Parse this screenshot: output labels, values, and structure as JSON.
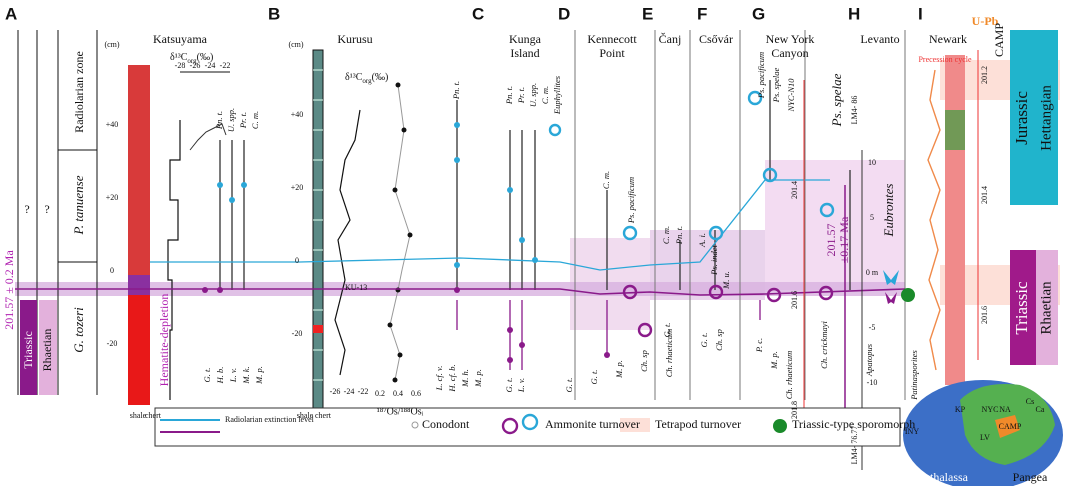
{
  "panels": {
    "A": {
      "letter": "A",
      "zone_header": "Radiolarian zone",
      "zone_upper": "P. tanuense",
      "zone_lower": "G. tozeri",
      "stage": "Rhaetian",
      "system": "Triassic",
      "unknown_1": "?",
      "unknown_2": "?",
      "age": "201.57 ± 0.2 Ma",
      "title": "Katsuyama",
      "depth_unit": "(cm)",
      "depth_ticks": [
        "+40",
        "+20",
        "0",
        "-20"
      ],
      "isotope_delta": "δ¹³C",
      "isotope_sub": "org",
      "isotope_unit": "(‰)",
      "isotope_ticks": [
        "-28",
        "-26",
        "-24",
        "-22"
      ],
      "top_taxa": [
        "Pn. t.",
        "U. spp.",
        "Pr. t.",
        "C. m."
      ],
      "bottom_taxa": [
        "G. t.",
        "H. b.",
        "L. v.",
        "M. k.",
        "M. p."
      ],
      "lithology": [
        "shale",
        "chert"
      ],
      "event": "Hematite-depletion"
    },
    "B": {
      "letter": "B",
      "title": "Kurusu",
      "depth_unit": "(cm)",
      "depth_ticks": [
        "+40",
        "+20",
        "0",
        "-20"
      ],
      "isotope_delta": "δ¹³C",
      "isotope_sub": "org",
      "isotope_unit": "(‰)",
      "isotope_ticks": [
        "-26",
        "-24",
        "-22"
      ],
      "os_ticks": [
        "0.2",
        "0.4",
        "0.6"
      ],
      "os_label": "¹⁸⁷Os/¹⁸⁸Osᵢ",
      "sample": "KU-13",
      "lithology": [
        "shale",
        "chert"
      ],
      "top_taxa": [
        "Pn. t."
      ],
      "bottom_taxa": [
        "L. cf. v.",
        "H. cf. b.",
        "M. h.",
        "M. p."
      ]
    },
    "C": {
      "letter": "C",
      "title_1": "Kunga",
      "title_2": "Island",
      "top_taxa": [
        "Pn. t.",
        "Pr. t.",
        "U. spp.",
        "C. m.",
        "Euphyllites"
      ],
      "bottom_taxa": [
        "G. t.",
        "L. v."
      ]
    },
    "D": {
      "letter": "D",
      "title_1": "Kennecott",
      "title_2": "Point",
      "top_taxa": [
        "C. m.",
        "Ps. pacificum"
      ],
      "bottom_taxa": [
        "G. t.",
        "G. t.",
        "M. p.",
        "Ch. sp",
        "Ch. rhaeticum"
      ]
    },
    "E": {
      "letter": "E",
      "title": "Čanj",
      "top_taxa": [
        "C. m.",
        "Pn. t."
      ],
      "bottom_taxa": [
        "G. t."
      ]
    },
    "F": {
      "letter": "F",
      "title": "Csővár",
      "top_taxa": [
        "A. i.",
        "Ps. indet",
        "M. u."
      ],
      "bottom_taxa": [
        "G. t.",
        "Ch. sp"
      ]
    },
    "G": {
      "letter": "G",
      "title_1": "New York",
      "title_2": "Canyon",
      "top_taxa": [
        "Ps. pacificum",
        "Ps. spelae",
        "NYC-N10"
      ],
      "bottom_taxa": [
        "P. c.",
        "M. p.",
        "Ch. rhaeticum"
      ],
      "age_ticks": [
        "201.4",
        "201.6",
        "201.8"
      ]
    },
    "H": {
      "letter": "H",
      "title": "Levanto",
      "sample_top": "LM4- 86",
      "sample_bottom": "LM4- 76.77",
      "taxon": "Ps. spelae",
      "track": "Eubrontes",
      "age_1": "201.57",
      "age_2": "±0.17 Ma",
      "meter_ticks": [
        "10",
        "5",
        "0 m",
        "-5",
        "-10"
      ],
      "bottom_taxa": [
        "Ch. crickmayi",
        "Apatopus",
        "Patinasporites"
      ]
    },
    "I": {
      "letter": "I",
      "title": "Newark",
      "upb": "U-Pb",
      "camp": "CAMP",
      "cycle": "Precession cycle",
      "age_ticks": [
        "201.2",
        "201.4",
        "201.6"
      ],
      "upper_system": "Jurassic",
      "upper_stage": "Hettangian",
      "lower_system": "Triassic",
      "lower_stage": "Rhaetian"
    }
  },
  "legend": {
    "radiolarian": "Radiolarian extinction level",
    "conodont": "Conodont",
    "ammonite": "Ammonite turnover",
    "tetrapod": "Tetrapod turnover",
    "sporomorph": "Triassic-type sporomorph"
  },
  "map": {
    "labels": [
      "KP",
      "NYC",
      "NA",
      "Cs",
      "Ca",
      "LV",
      "INY",
      "CAMP"
    ],
    "ocean": "Panthalassa",
    "continent": "Pangea"
  }
}
